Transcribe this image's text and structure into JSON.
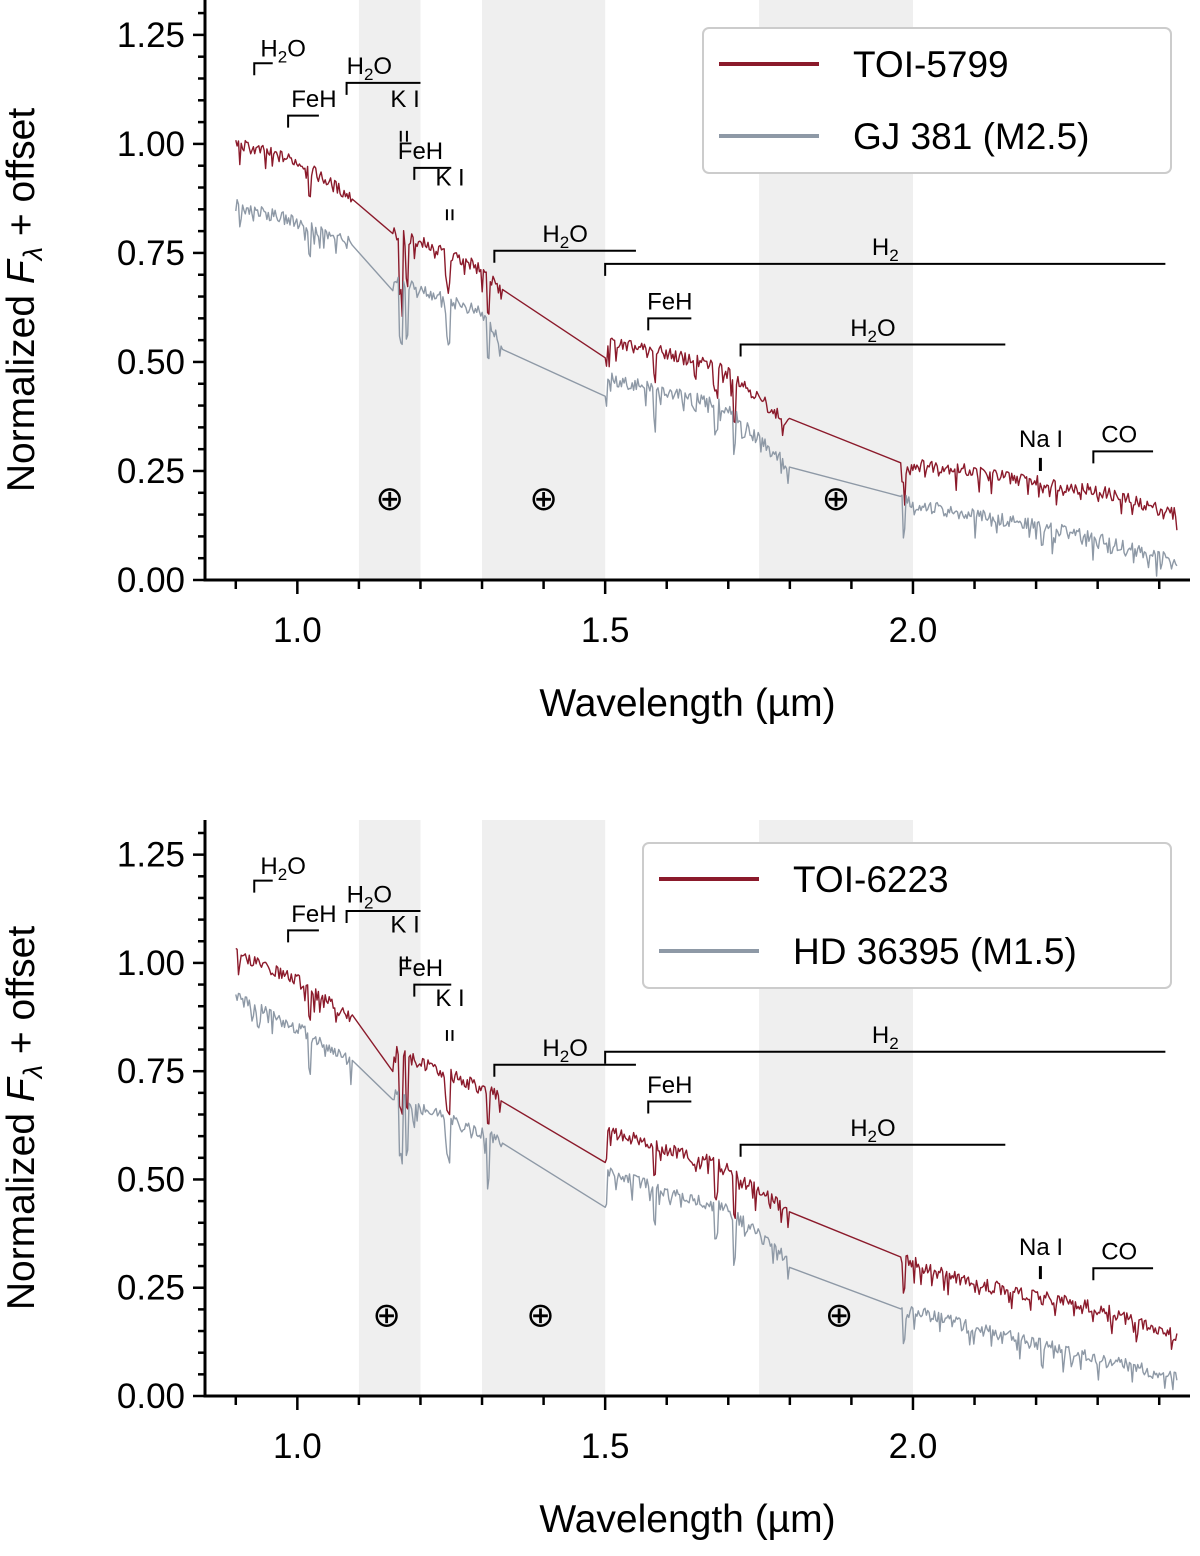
{
  "chart_data": [
    {
      "type": "line",
      "panel": "top",
      "xlabel": "Wavelength (µm)",
      "ylabel": "Normalized F_λ + offset",
      "ylabel_parts": {
        "main": "Normalized ",
        "symbol": "F",
        "subscript": "λ",
        "rest": " + offset"
      },
      "xlim": [
        0.85,
        2.45
      ],
      "ylim": [
        0.0,
        1.33
      ],
      "xticks": [
        1.0,
        1.5,
        2.0
      ],
      "xtick_labels": [
        "1.0",
        "1.5",
        "2.0"
      ],
      "xminor": [
        0.9,
        1.1,
        1.2,
        1.3,
        1.4,
        1.6,
        1.7,
        1.8,
        1.9,
        2.1,
        2.2,
        2.3,
        2.4
      ],
      "yticks": [
        0.0,
        0.25,
        0.5,
        0.75,
        1.0,
        1.25
      ],
      "ytick_labels": [
        "0.00",
        "0.25",
        "0.50",
        "0.75",
        "1.00",
        "1.25"
      ],
      "telluric_bands": [
        [
          1.1,
          1.2
        ],
        [
          1.3,
          1.5
        ],
        [
          1.75,
          2.0
        ]
      ],
      "telluric_symbol": "⊕",
      "telluric_marks": [
        {
          "x": 1.15,
          "y": 0.16
        },
        {
          "x": 1.4,
          "y": 0.16
        },
        {
          "x": 1.875,
          "y": 0.16
        }
      ],
      "legend_position": "top-right",
      "series": [
        {
          "name": "TOI-5799",
          "color": "#8b1a2b",
          "continuum": [
            [
              0.9,
              1.0
            ],
            [
              1.0,
              0.96
            ],
            [
              1.09,
              0.875
            ],
            [
              1.15,
              0.8
            ],
            [
              1.2,
              0.775
            ],
            [
              1.25,
              0.745
            ],
            [
              1.3,
              0.715
            ],
            [
              1.335,
              0.65
            ],
            [
              1.5,
              0.545
            ],
            [
              1.6,
              0.52
            ],
            [
              1.7,
              0.48
            ],
            [
              1.8,
              0.355
            ],
            [
              1.97,
              0.265
            ],
            [
              2.05,
              0.26
            ],
            [
              2.2,
              0.225
            ],
            [
              2.3,
              0.205
            ],
            [
              2.43,
              0.15
            ]
          ],
          "segments": [
            [
              0.9,
              1.09
            ],
            [
              1.155,
              1.335
            ],
            [
              1.5,
              1.8
            ],
            [
              1.98,
              2.43
            ]
          ],
          "dips": [
            [
              1.02,
              0.05
            ],
            [
              1.168,
              0.13
            ],
            [
              1.178,
              0.11
            ],
            [
              1.245,
              0.08
            ],
            [
              1.31,
              0.07
            ],
            [
              1.5,
              0.04
            ],
            [
              1.58,
              0.06
            ],
            [
              1.68,
              0.06
            ],
            [
              1.71,
              0.1
            ],
            [
              1.975,
              0.07
            ],
            [
              1.985,
              0.05
            ],
            [
              2.21,
              0.02
            ],
            [
              2.3,
              0.02
            ]
          ]
        },
        {
          "name": "GJ 381 (M2.5)",
          "color": "#8e99a6",
          "continuum": [
            [
              0.9,
              0.86
            ],
            [
              1.0,
              0.82
            ],
            [
              1.09,
              0.77
            ],
            [
              1.15,
              0.7
            ],
            [
              1.2,
              0.665
            ],
            [
              1.25,
              0.64
            ],
            [
              1.3,
              0.61
            ],
            [
              1.335,
              0.535
            ],
            [
              1.5,
              0.465
            ],
            [
              1.6,
              0.43
            ],
            [
              1.7,
              0.395
            ],
            [
              1.8,
              0.255
            ],
            [
              1.97,
              0.185
            ],
            [
              2.05,
              0.16
            ],
            [
              2.2,
              0.125
            ],
            [
              2.3,
              0.095
            ],
            [
              2.43,
              0.04
            ]
          ],
          "segments": [
            [
              0.9,
              1.09
            ],
            [
              1.155,
              1.335
            ],
            [
              1.5,
              1.8
            ],
            [
              1.98,
              2.43
            ]
          ],
          "dips": [
            [
              1.02,
              0.07
            ],
            [
              1.168,
              0.14
            ],
            [
              1.178,
              0.12
            ],
            [
              1.245,
              0.09
            ],
            [
              1.31,
              0.08
            ],
            [
              1.5,
              0.04
            ],
            [
              1.58,
              0.05
            ],
            [
              1.68,
              0.06
            ],
            [
              1.71,
              0.08
            ],
            [
              1.975,
              0.09
            ],
            [
              1.985,
              0.07
            ],
            [
              2.21,
              0.03
            ],
            [
              2.3,
              0.03
            ]
          ]
        }
      ],
      "features": [
        {
          "label": "H2O",
          "x1": 0.93,
          "x2": 0.96,
          "y": 1.185,
          "lx": 0.94,
          "ly": 1.2,
          "sub": true
        },
        {
          "label": "FeH",
          "x1": 0.985,
          "x2": 1.035,
          "y": 1.065,
          "lx": 0.99,
          "ly": 1.085,
          "sub": false
        },
        {
          "label": "H2O",
          "x1": 1.08,
          "x2": 1.2,
          "y": 1.14,
          "lx": 1.08,
          "ly": 1.16,
          "sub": true
        },
        {
          "label": "K I",
          "x1": 1.168,
          "x2": 1.178,
          "y": 1.03,
          "lx": 1.175,
          "ly": 1.085,
          "sub": false,
          "doublet": true
        },
        {
          "label": "FeH",
          "x1": 1.19,
          "x2": 1.25,
          "y": 0.945,
          "lx": 1.2,
          "ly": 0.965,
          "sub": false
        },
        {
          "label": "K I",
          "x1": 1.243,
          "x2": 1.252,
          "y": 0.85,
          "lx": 1.248,
          "ly": 0.905,
          "sub": false,
          "doublet": true
        },
        {
          "label": "H2O",
          "x1": 1.32,
          "x2": 1.55,
          "y": 0.755,
          "lx": 1.435,
          "ly": 0.775,
          "sub": true
        },
        {
          "label": "H2",
          "x1": 1.5,
          "x2": 2.41,
          "y": 0.725,
          "lx": 1.955,
          "ly": 0.745,
          "sub": true
        },
        {
          "label": "FeH",
          "x1": 1.57,
          "x2": 1.64,
          "y": 0.6,
          "lx": 1.605,
          "ly": 0.62,
          "sub": false
        },
        {
          "label": "H2O",
          "x1": 1.72,
          "x2": 2.15,
          "y": 0.54,
          "lx": 1.935,
          "ly": 0.56,
          "sub": true
        },
        {
          "label": "Na I",
          "x1": 2.207,
          "x2": 2.21,
          "y": 0.26,
          "lx": 2.208,
          "ly": 0.305,
          "sub": false,
          "marker": true
        },
        {
          "label": "CO",
          "x1": 2.293,
          "x2": 2.39,
          "y": 0.295,
          "lx": 2.335,
          "ly": 0.315,
          "sub": false
        }
      ]
    },
    {
      "type": "line",
      "panel": "bottom",
      "xlabel": "Wavelength (µm)",
      "ylabel": "Normalized F_λ + offset",
      "ylabel_parts": {
        "main": "Normalized ",
        "symbol": "F",
        "subscript": "λ",
        "rest": " + offset"
      },
      "xlim": [
        0.85,
        2.45
      ],
      "ylim": [
        0.0,
        1.33
      ],
      "xticks": [
        1.0,
        1.5,
        2.0
      ],
      "xtick_labels": [
        "1.0",
        "1.5",
        "2.0"
      ],
      "xminor": [
        0.9,
        1.1,
        1.2,
        1.3,
        1.4,
        1.6,
        1.7,
        1.8,
        1.9,
        2.1,
        2.2,
        2.3,
        2.4
      ],
      "yticks": [
        0.0,
        0.25,
        0.5,
        0.75,
        1.0,
        1.25
      ],
      "ytick_labels": [
        "0.00",
        "0.25",
        "0.50",
        "0.75",
        "1.00",
        "1.25"
      ],
      "telluric_bands": [
        [
          1.1,
          1.2
        ],
        [
          1.3,
          1.5
        ],
        [
          1.75,
          2.0
        ]
      ],
      "telluric_symbol": "⊕",
      "telluric_marks": [
        {
          "x": 1.145,
          "y": 0.16
        },
        {
          "x": 1.395,
          "y": 0.16
        },
        {
          "x": 1.88,
          "y": 0.16
        }
      ],
      "legend_position": "top-right",
      "series": [
        {
          "name": "TOI-6223",
          "color": "#8b1a2b",
          "continuum": [
            [
              0.9,
              1.02
            ],
            [
              1.0,
              0.96
            ],
            [
              1.09,
              0.87
            ],
            [
              1.15,
              0.8
            ],
            [
              1.2,
              0.77
            ],
            [
              1.25,
              0.74
            ],
            [
              1.3,
              0.71
            ],
            [
              1.335,
              0.69
            ],
            [
              1.5,
              0.615
            ],
            [
              1.6,
              0.57
            ],
            [
              1.7,
              0.53
            ],
            [
              1.8,
              0.42
            ],
            [
              1.97,
              0.325
            ],
            [
              2.05,
              0.28
            ],
            [
              2.2,
              0.23
            ],
            [
              2.3,
              0.205
            ],
            [
              2.43,
              0.14
            ]
          ],
          "segments": [
            [
              0.9,
              1.09
            ],
            [
              1.155,
              1.335
            ],
            [
              1.5,
              1.8
            ],
            [
              1.98,
              2.43
            ]
          ],
          "dips": [
            [
              1.02,
              0.06
            ],
            [
              1.168,
              0.13
            ],
            [
              1.178,
              0.11
            ],
            [
              1.245,
              0.08
            ],
            [
              1.31,
              0.09
            ],
            [
              1.5,
              0.07
            ],
            [
              1.58,
              0.07
            ],
            [
              1.68,
              0.07
            ],
            [
              1.71,
              0.11
            ],
            [
              1.975,
              0.08
            ],
            [
              1.985,
              0.06
            ],
            [
              2.21,
              0.03
            ],
            [
              2.3,
              0.02
            ]
          ]
        },
        {
          "name": "HD 36395 (M1.5)",
          "color": "#8e99a6",
          "continuum": [
            [
              0.9,
              0.92
            ],
            [
              1.0,
              0.85
            ],
            [
              1.09,
              0.77
            ],
            [
              1.15,
              0.7
            ],
            [
              1.2,
              0.665
            ],
            [
              1.25,
              0.635
            ],
            [
              1.3,
              0.605
            ],
            [
              1.335,
              0.585
            ],
            [
              1.5,
              0.52
            ],
            [
              1.6,
              0.47
            ],
            [
              1.7,
              0.43
            ],
            [
              1.8,
              0.31
            ],
            [
              1.97,
              0.2
            ],
            [
              2.05,
              0.18
            ],
            [
              2.2,
              0.12
            ],
            [
              2.3,
              0.09
            ],
            [
              2.43,
              0.04
            ]
          ],
          "segments": [
            [
              0.9,
              1.09
            ],
            [
              1.155,
              1.335
            ],
            [
              1.5,
              1.8
            ],
            [
              1.98,
              2.43
            ]
          ],
          "dips": [
            [
              1.02,
              0.08
            ],
            [
              1.168,
              0.14
            ],
            [
              1.178,
              0.12
            ],
            [
              1.245,
              0.09
            ],
            [
              1.31,
              0.11
            ],
            [
              1.5,
              0.08
            ],
            [
              1.58,
              0.07
            ],
            [
              1.68,
              0.07
            ],
            [
              1.71,
              0.1
            ],
            [
              1.975,
              0.1
            ],
            [
              1.985,
              0.08
            ],
            [
              2.21,
              0.04
            ],
            [
              2.3,
              0.03
            ]
          ]
        }
      ],
      "features": [
        {
          "label": "H2O",
          "x1": 0.93,
          "x2": 0.96,
          "y": 1.19,
          "lx": 0.94,
          "ly": 1.205,
          "sub": true
        },
        {
          "label": "FeH",
          "x1": 0.985,
          "x2": 1.035,
          "y": 1.075,
          "lx": 0.99,
          "ly": 1.095,
          "sub": false
        },
        {
          "label": "H2O",
          "x1": 1.08,
          "x2": 1.2,
          "y": 1.12,
          "lx": 1.08,
          "ly": 1.14,
          "sub": true
        },
        {
          "label": "K I",
          "x1": 1.168,
          "x2": 1.178,
          "y": 1.015,
          "lx": 1.175,
          "ly": 1.07,
          "sub": false,
          "doublet": true
        },
        {
          "label": "FeH",
          "x1": 1.19,
          "x2": 1.25,
          "y": 0.95,
          "lx": 1.2,
          "ly": 0.97,
          "sub": false
        },
        {
          "label": "K I",
          "x1": 1.243,
          "x2": 1.252,
          "y": 0.845,
          "lx": 1.248,
          "ly": 0.9,
          "sub": false,
          "doublet": true
        },
        {
          "label": "H2O",
          "x1": 1.32,
          "x2": 1.55,
          "y": 0.765,
          "lx": 1.435,
          "ly": 0.785,
          "sub": true
        },
        {
          "label": "H2",
          "x1": 1.5,
          "x2": 2.41,
          "y": 0.795,
          "lx": 1.955,
          "ly": 0.815,
          "sub": true
        },
        {
          "label": "FeH",
          "x1": 1.57,
          "x2": 1.64,
          "y": 0.68,
          "lx": 1.605,
          "ly": 0.7,
          "sub": false
        },
        {
          "label": "H2O",
          "x1": 1.72,
          "x2": 2.15,
          "y": 0.58,
          "lx": 1.935,
          "ly": 0.6,
          "sub": true
        },
        {
          "label": "Na I",
          "x1": 2.207,
          "x2": 2.21,
          "y": 0.28,
          "lx": 2.208,
          "ly": 0.325,
          "sub": false,
          "marker": true
        },
        {
          "label": "CO",
          "x1": 2.293,
          "x2": 2.39,
          "y": 0.295,
          "lx": 2.335,
          "ly": 0.315,
          "sub": false
        }
      ]
    }
  ]
}
